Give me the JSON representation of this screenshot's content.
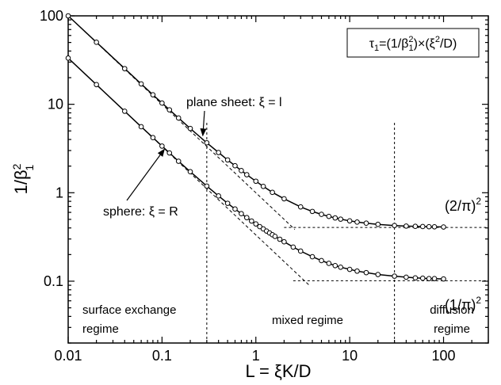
{
  "chart_data": {
    "type": "line",
    "xscale": "log",
    "yscale": "log",
    "xlim": [
      0.01,
      300
    ],
    "ylim": [
      0.02,
      100
    ],
    "xlabel": "L = ξK/D",
    "ylabel": "1/β₁²",
    "xticks": [
      "0.01",
      "0.1",
      "1",
      "10",
      "100"
    ],
    "yticks": [
      "0.1",
      "1",
      "10",
      "100"
    ],
    "formula": "τ₁=(1/β₁²)×(ξ²/D)",
    "series": [
      {
        "label": "plane sheet: ξ = l",
        "x": [
          0.01,
          0.02,
          0.04,
          0.06,
          0.08,
          0.1,
          0.12,
          0.15,
          0.2,
          0.3,
          0.4,
          0.5,
          0.6,
          0.7,
          0.8,
          1,
          1.2,
          1.5,
          2,
          3,
          4,
          5,
          6,
          7,
          8,
          10,
          12,
          15,
          20,
          30,
          40,
          50,
          60,
          70,
          80,
          100
        ],
        "y": [
          100,
          50.3,
          25.3,
          17.0,
          12.8,
          10.33,
          8.66,
          7.0,
          5.33,
          3.67,
          2.85,
          2.35,
          2.02,
          1.78,
          1.6,
          1.35,
          1.18,
          1.01,
          0.855,
          0.692,
          0.615,
          0.57,
          0.54,
          0.519,
          0.503,
          0.481,
          0.466,
          0.453,
          0.439,
          0.426,
          0.42,
          0.417,
          0.415,
          0.413,
          0.412,
          0.41
        ]
      },
      {
        "label": "sphere: ξ = R",
        "x": [
          0.01,
          0.02,
          0.04,
          0.06,
          0.08,
          0.1,
          0.12,
          0.15,
          0.2,
          0.3,
          0.4,
          0.5,
          0.6,
          0.7,
          0.8,
          0.9,
          1,
          1.1,
          1.2,
          1.3,
          1.4,
          1.5,
          1.6,
          1.8,
          2,
          2.5,
          3,
          4,
          5,
          6,
          7,
          8,
          10,
          12,
          15,
          20,
          30,
          40,
          50,
          60,
          70,
          80,
          100
        ],
        "y": [
          33.3,
          16.7,
          8.35,
          5.58,
          4.2,
          3.37,
          2.82,
          2.27,
          1.73,
          1.19,
          0.92,
          0.76,
          0.655,
          0.58,
          0.523,
          0.479,
          0.444,
          0.414,
          0.39,
          0.369,
          0.351,
          0.335,
          0.321,
          0.298,
          0.279,
          0.243,
          0.219,
          0.189,
          0.171,
          0.159,
          0.15,
          0.144,
          0.136,
          0.13,
          0.125,
          0.119,
          0.114,
          0.111,
          0.109,
          0.108,
          0.107,
          0.107,
          0.106
        ]
      }
    ],
    "asymptotes": [
      {
        "kind": "horizontal",
        "y": 0.405,
        "x_from": 2,
        "x_to": 300,
        "label": "(2/π)²"
      },
      {
        "kind": "horizontal",
        "y": 0.1013,
        "x_from": 2.5,
        "x_to": 300,
        "label": "(1/π)²"
      },
      {
        "kind": "power",
        "coef": 1,
        "x_from": 0.01,
        "x_to": 2.6
      },
      {
        "kind": "power",
        "coef": 0.3333,
        "x_from": 0.01,
        "x_to": 3.8
      }
    ],
    "regime_boundaries": [
      0.3,
      30
    ],
    "regimes": [
      {
        "lines": [
          "surface exchange",
          "regime"
        ]
      },
      {
        "lines": [
          "mixed regime"
        ]
      },
      {
        "lines": [
          "diffusion",
          "regime"
        ]
      }
    ],
    "annotations": [
      {
        "text": "plane sheet: ξ = l",
        "points_to": [
          0.3,
          3.67
        ]
      },
      {
        "text": "sphere: ξ = R",
        "points_to": [
          0.1,
          3.37
        ]
      }
    ]
  }
}
